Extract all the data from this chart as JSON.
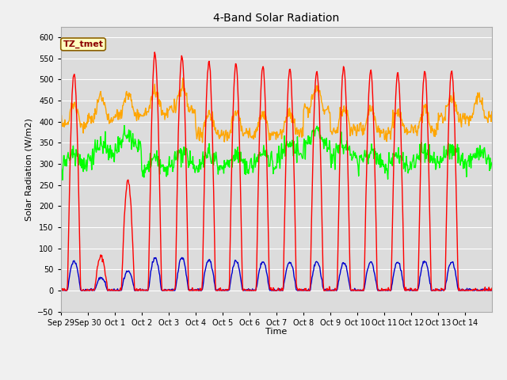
{
  "title": "4-Band Solar Radiation",
  "ylabel": "Solar Radiation (W/m2)",
  "xlabel": "Time",
  "annotation": "TZ_tmet",
  "ylim": [
    -50,
    625
  ],
  "yticks": [
    -50,
    0,
    50,
    100,
    150,
    200,
    250,
    300,
    350,
    400,
    450,
    500,
    550,
    600
  ],
  "x_labels": [
    "Sep 29",
    "Sep 30",
    "Oct 1",
    "Oct 2",
    "Oct 3",
    "Oct 4",
    "Oct 5",
    "Oct 6",
    "Oct 7",
    "Oct 8",
    "Oct 9",
    "Oct 10",
    "Oct 11",
    "Oct 12",
    "Oct 13",
    "Oct 14"
  ],
  "colors": {
    "SWin": "#ff0000",
    "SWout": "#0000cc",
    "LWin": "#00ff00",
    "LWout": "#ffa500"
  },
  "fig_bg": "#f0f0f0",
  "plot_bg": "#dcdcdc",
  "grid_color": "#ffffff",
  "line_width": 1.0,
  "num_days": 16,
  "sw_peaks": [
    515,
    80,
    260,
    560,
    555,
    545,
    535,
    530,
    525,
    520,
    530,
    520,
    515,
    520,
    520,
    0
  ],
  "sw_out_peaks": [
    70,
    30,
    45,
    78,
    78,
    73,
    70,
    68,
    68,
    68,
    65,
    68,
    68,
    68,
    68,
    0
  ],
  "lw_in_base": [
    310,
    330,
    350,
    295,
    310,
    310,
    305,
    310,
    330,
    360,
    330,
    315,
    305,
    315,
    320,
    315
  ],
  "lw_out_base": [
    390,
    410,
    415,
    420,
    430,
    370,
    370,
    370,
    370,
    430,
    380,
    380,
    375,
    380,
    410,
    410
  ]
}
